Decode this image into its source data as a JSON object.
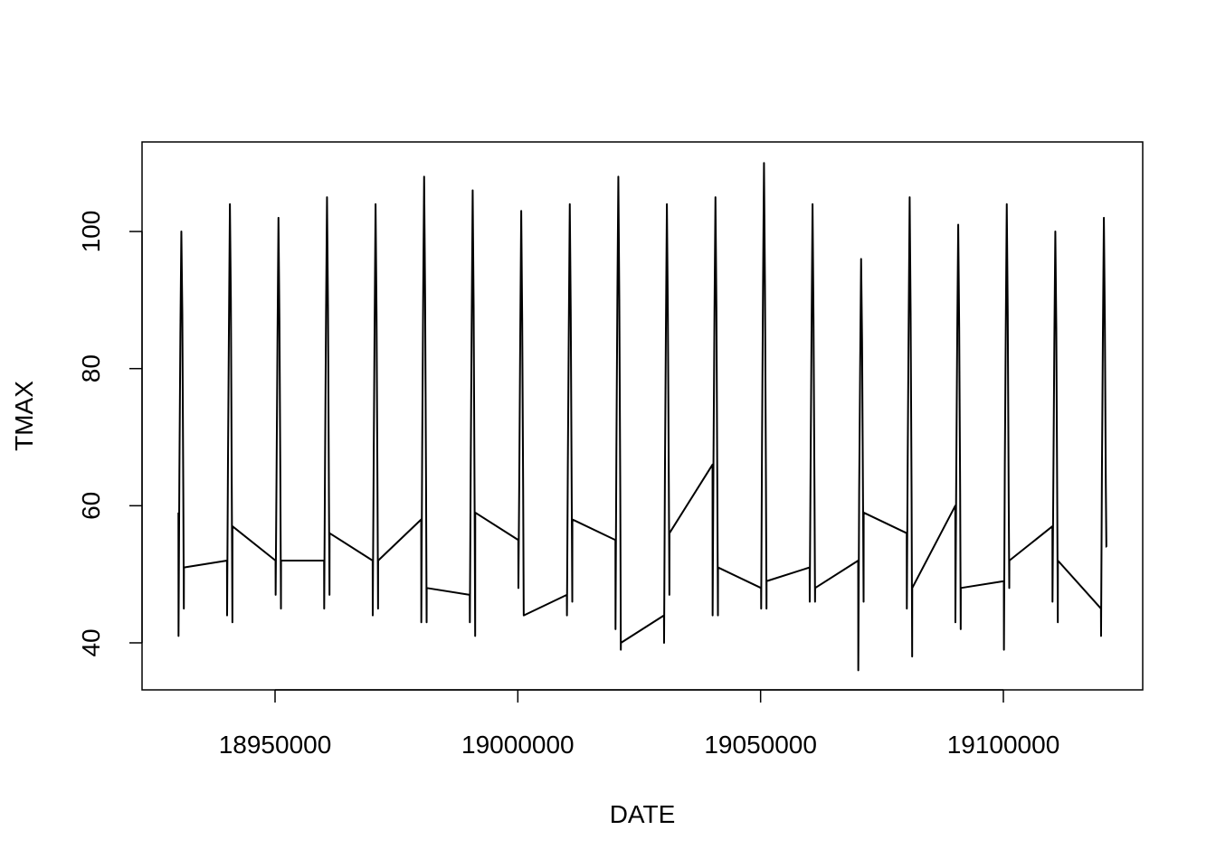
{
  "chart_data": {
    "type": "line",
    "x_label": "DATE",
    "y_label": "TMAX",
    "x": [
      18930101,
      18930120,
      18930301,
      18930501,
      18930701,
      18930901,
      18931101,
      18931215,
      18931231,
      18940101,
      18940120,
      18940301,
      18940501,
      18940701,
      18940901,
      18941101,
      18941215,
      18941231,
      18950101,
      18950120,
      18950301,
      18950501,
      18950701,
      18950901,
      18951101,
      18951215,
      18951231,
      18960101,
      18960120,
      18960301,
      18960501,
      18960701,
      18960901,
      18961101,
      18961215,
      18961231,
      18970101,
      18970120,
      18970301,
      18970501,
      18970701,
      18970901,
      18971101,
      18971215,
      18971231,
      18980101,
      18980120,
      18980301,
      18980501,
      18980701,
      18980901,
      18981101,
      18981215,
      18981231,
      18990101,
      18990120,
      18990301,
      18990501,
      18990701,
      18990901,
      18991101,
      18991215,
      18991231,
      19000101,
      19000120,
      19000301,
      19000501,
      19000701,
      19000901,
      19001101,
      19001215,
      19001231,
      19010101,
      19010120,
      19010301,
      19010501,
      19010701,
      19010901,
      19011101,
      19011215,
      19011231,
      19020101,
      19020120,
      19020301,
      19020501,
      19020701,
      19020901,
      19021101,
      19021215,
      19021231,
      19030101,
      19030120,
      19030301,
      19030501,
      19030701,
      19030901,
      19031101,
      19031215,
      19031231,
      19040101,
      19040120,
      19040301,
      19040501,
      19040701,
      19040901,
      19041101,
      19041215,
      19041231,
      19050101,
      19050120,
      19050301,
      19050501,
      19050701,
      19050901,
      19051101,
      19051215,
      19051231,
      19060101,
      19060120,
      19060301,
      19060501,
      19060701,
      19060901,
      19061101,
      19061215,
      19061231,
      19070101,
      19070120,
      19070301,
      19070501,
      19070701,
      19070901,
      19071101,
      19071215,
      19071231,
      19080101,
      19080120,
      19080301,
      19080501,
      19080701,
      19080901,
      19081101,
      19081215,
      19081231,
      19090101,
      19090120,
      19090301,
      19090501,
      19090701,
      19090901,
      19091101,
      19091215,
      19091231,
      19100101,
      19100120,
      19100301,
      19100501,
      19100701,
      19100901,
      19101101,
      19101215,
      19101231,
      19110101,
      19110120,
      19110301,
      19110501,
      19110701,
      19110901,
      19111101,
      19111215,
      19111231,
      19120101,
      19120120,
      19120301,
      19120501,
      19120701,
      19120901,
      19121101,
      19121215,
      19121231
    ],
    "values": [
      59,
      41,
      65,
      85,
      100,
      88,
      62,
      45,
      51,
      52,
      44,
      66,
      86,
      104,
      90,
      60,
      43,
      57,
      52,
      47,
      64,
      84,
      102,
      87,
      63,
      45,
      52,
      52,
      45,
      67,
      88,
      105,
      89,
      61,
      47,
      56,
      52,
      44,
      65,
      86,
      104,
      88,
      62,
      45,
      52,
      58,
      43,
      68,
      90,
      108,
      91,
      63,
      43,
      48,
      47,
      43,
      66,
      87,
      106,
      89,
      60,
      41,
      59,
      55,
      48,
      64,
      85,
      103,
      87,
      62,
      44,
      44,
      47,
      44,
      66,
      86,
      104,
      88,
      61,
      46,
      58,
      55,
      42,
      68,
      90,
      108,
      90,
      62,
      39,
      40,
      44,
      40,
      65,
      86,
      104,
      88,
      63,
      47,
      56,
      66,
      44,
      67,
      88,
      105,
      89,
      61,
      44,
      51,
      48,
      45,
      70,
      92,
      110,
      92,
      64,
      45,
      49,
      51,
      46,
      66,
      86,
      104,
      87,
      62,
      46,
      48,
      52,
      36,
      62,
      80,
      96,
      84,
      60,
      46,
      59,
      56,
      45,
      67,
      87,
      105,
      88,
      61,
      38,
      48,
      60,
      43,
      65,
      85,
      101,
      86,
      62,
      42,
      48,
      49,
      39,
      66,
      86,
      104,
      88,
      61,
      48,
      52,
      57,
      46,
      64,
      84,
      100,
      86,
      60,
      43,
      52,
      45,
      41,
      65,
      85,
      102,
      87,
      63,
      54,
      54
    ],
    "color": "#000000",
    "xlim": [
      18922606,
      19128700
    ],
    "xticks": [
      18950000,
      19000000,
      19050000,
      19100000
    ],
    "ylim": [
      33.14,
      113.06
    ],
    "yticks": [
      40,
      60,
      80,
      100
    ]
  }
}
